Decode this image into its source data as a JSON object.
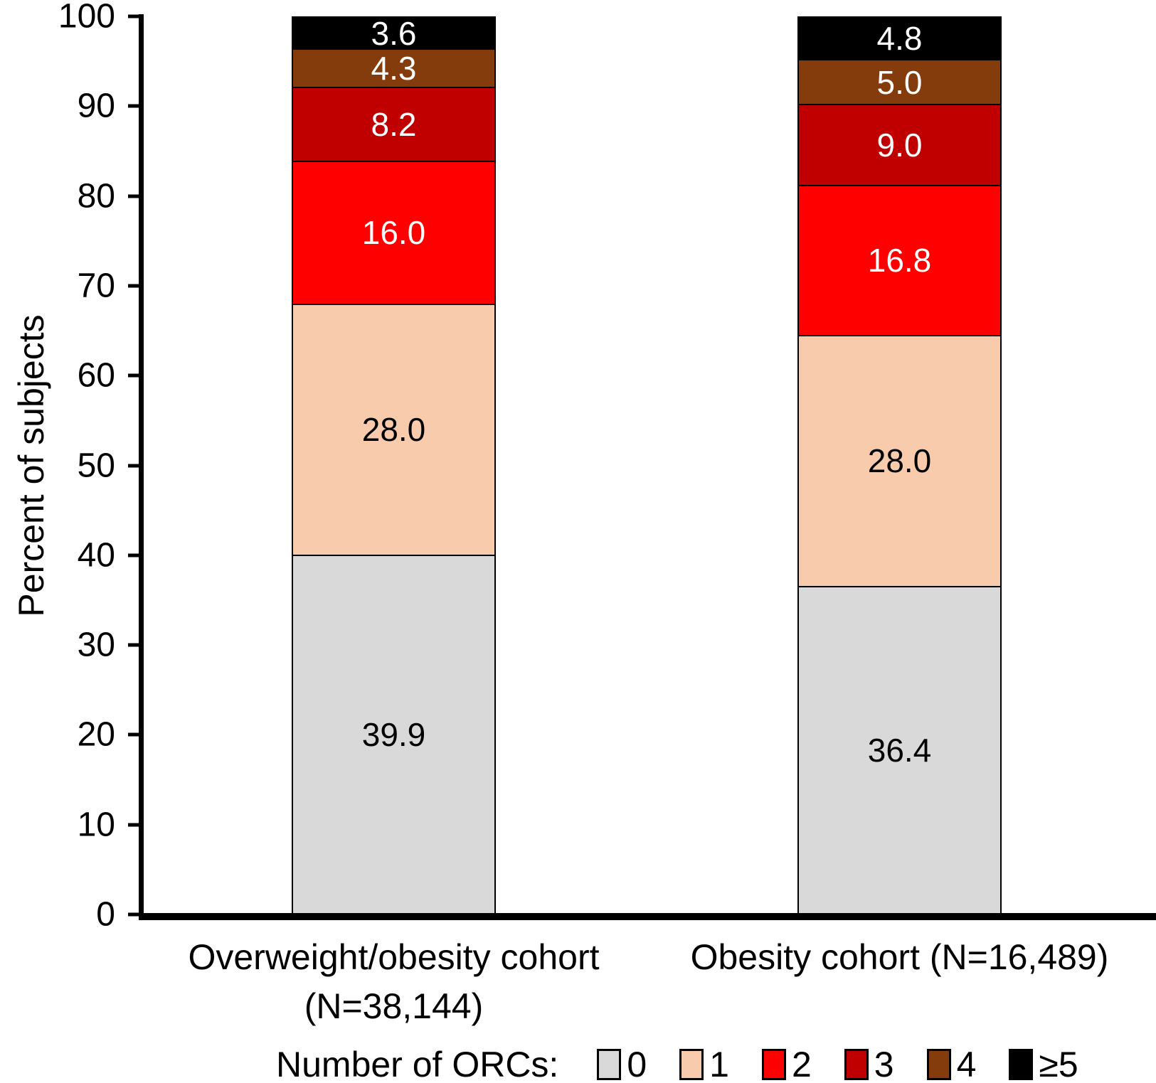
{
  "chart_data": {
    "type": "bar",
    "stacked": true,
    "orientation": "vertical",
    "ylabel": "Percent of subjects",
    "ylim": [
      0,
      100
    ],
    "yticks": [
      0,
      10,
      20,
      30,
      40,
      50,
      60,
      70,
      80,
      90,
      100
    ],
    "grid": false,
    "value_format_decimals": 1,
    "categories": [
      {
        "lines": [
          "Overweight/obesity cohort",
          "(N=38,144)"
        ]
      },
      {
        "lines": [
          "Obesity cohort (N=16,489)"
        ]
      }
    ],
    "legend": {
      "title": "Number of ORCs:",
      "position": "bottom"
    },
    "series": [
      {
        "name": "0",
        "color": "#D9D9D9",
        "label_color": "#000000",
        "values": [
          39.9,
          36.4
        ]
      },
      {
        "name": "1",
        "color": "#F8CBAD",
        "label_color": "#000000",
        "values": [
          28.0,
          28.0
        ]
      },
      {
        "name": "2",
        "color": "#FF0000",
        "label_color": "#FFFFFF",
        "values": [
          16.0,
          16.8
        ]
      },
      {
        "name": "3",
        "color": "#C00000",
        "label_color": "#FFFFFF",
        "values": [
          8.2,
          9.0
        ]
      },
      {
        "name": "4",
        "color": "#843C0C",
        "label_color": "#FFFFFF",
        "values": [
          4.3,
          5.0
        ]
      },
      {
        "name": "≥5",
        "color": "#000000",
        "label_color": "#FFFFFF",
        "values": [
          3.6,
          4.8
        ]
      }
    ]
  }
}
